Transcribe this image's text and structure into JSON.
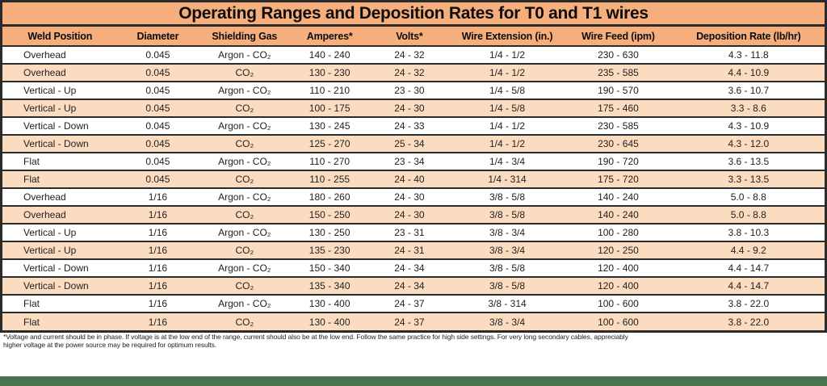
{
  "title": "Operating Ranges and Deposition Rates for T0 and T1 wires",
  "colors": {
    "header_bg": "#f5ae7c",
    "row_alt_bg": "#fbdcc1",
    "row_bg": "#ffffff",
    "border": "#2a2a28",
    "footer_bar": "#4a7350",
    "ink": "#111111"
  },
  "table": {
    "columns": [
      "Weld Position",
      "Diameter",
      "Shielding Gas",
      "Amperes*",
      "Volts*",
      "Wire Extension (in.)",
      "Wire Feed (ipm)",
      "Deposition Rate (lb/hr)"
    ],
    "rows": [
      [
        "Overhead",
        "0.045",
        "Argon - CO₂",
        "140 - 240",
        "24 - 32",
        "1/4 - 1/2",
        "230 - 630",
        "4.3 - 11.8"
      ],
      [
        "Overhead",
        "0.045",
        "CO₂",
        "130 - 230",
        "24 - 32",
        "1/4 - 1/2",
        "235 - 585",
        "4.4 - 10.9"
      ],
      [
        "Vertical - Up",
        "0.045",
        "Argon - CO₂",
        "110 - 210",
        "23 - 30",
        "1/4 - 5/8",
        "190 - 570",
        "3.6 - 10.7"
      ],
      [
        "Vertical - Up",
        "0.045",
        "CO₂",
        "100 - 175",
        "24 - 30",
        "1/4 - 5/8",
        "175 - 460",
        "3.3 - 8.6"
      ],
      [
        "Vertical - Down",
        "0.045",
        "Argon - CO₂",
        "130 - 245",
        "24 - 33",
        "1/4 - 1/2",
        "230 - 585",
        "4.3 - 10.9"
      ],
      [
        "Vertical - Down",
        "0.045",
        "CO₂",
        "125 - 270",
        "25 - 34",
        "1/4 - 1/2",
        "230 - 645",
        "4.3 - 12.0"
      ],
      [
        "Flat",
        "0.045",
        "Argon - CO₂",
        "110 - 270",
        "23 - 34",
        "1/4 - 3/4",
        "190 - 720",
        "3.6 - 13.5"
      ],
      [
        "Flat",
        "0.045",
        "CO₂",
        "110 - 255",
        "24 - 40",
        "1/4 - 314",
        "175 - 720",
        "3.3 - 13.5"
      ],
      [
        "Overhead",
        "1/16",
        "Argon - CO₂",
        "180 - 260",
        "24 - 30",
        "3/8 - 5/8",
        "140 - 240",
        "5.0 - 8.8"
      ],
      [
        "Overhead",
        "1/16",
        "CO₂",
        "150 - 250",
        "24 - 30",
        "3/8 - 5/8",
        "140 - 240",
        "5.0 - 8.8"
      ],
      [
        "Vertical - Up",
        "1/16",
        "Argon - CO₂",
        "130 - 250",
        "23 - 31",
        "3/8 - 3/4",
        "100 - 280",
        "3.8 - 10.3"
      ],
      [
        "Vertical - Up",
        "1/16",
        "CO₂",
        "135 - 230",
        "24 - 31",
        "3/8 - 3/4",
        "120 - 250",
        "4.4 - 9.2"
      ],
      [
        "Vertical - Down",
        "1/16",
        "Argon - CO₂",
        "150 - 340",
        "24 - 34",
        "3/8 - 5/8",
        "120 - 400",
        "4.4 - 14.7"
      ],
      [
        "Vertical - Down",
        "1/16",
        "CO₂",
        "135 - 340",
        "24 - 34",
        "3/8 - 5/8",
        "120 - 400",
        "4.4 - 14.7"
      ],
      [
        "Flat",
        "1/16",
        "Argon - CO₂",
        "130 - 400",
        "24 - 37",
        "3/8 - 314",
        "100 - 600",
        "3.8 - 22.0"
      ],
      [
        "Flat",
        "1/16",
        "CO₂",
        "130 - 400",
        "24 - 37",
        "3/8 - 3/4",
        "100 - 600",
        "3.8 - 22.0"
      ]
    ]
  },
  "footnote": {
    "line1": "*Voltage and current should be in phase. If voltage is at the low end of the range, current should also be at the low end. Follow the same practice for high side settings. For very long secondary cables, appreciably",
    "line2": "higher voltage at the power source may be required for optimum results."
  }
}
